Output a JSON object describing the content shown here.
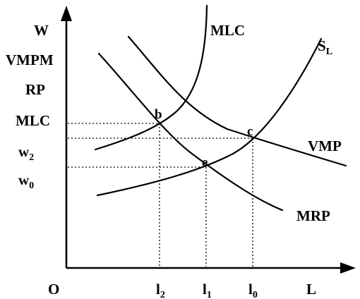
{
  "y_axis_labels": {
    "w": "W",
    "vmpm": "VMPM",
    "rp": "RP",
    "mlc": "MLC",
    "w2": "w",
    "w2_sub": "2",
    "w0": "w",
    "w0_sub": "0"
  },
  "x_axis_labels": {
    "origin": "O",
    "l2": "l",
    "l2_sub": "2",
    "l1": "l",
    "l1_sub": "1",
    "l0": "l",
    "l0_sub": "0",
    "L": "L"
  },
  "curve_labels": {
    "mlc": "MLC",
    "sl": "S",
    "sl_sub": "L",
    "vmp": "VMP",
    "mrp": "MRP"
  },
  "point_labels": {
    "b": "b",
    "c": "c",
    "e": "e"
  }
}
